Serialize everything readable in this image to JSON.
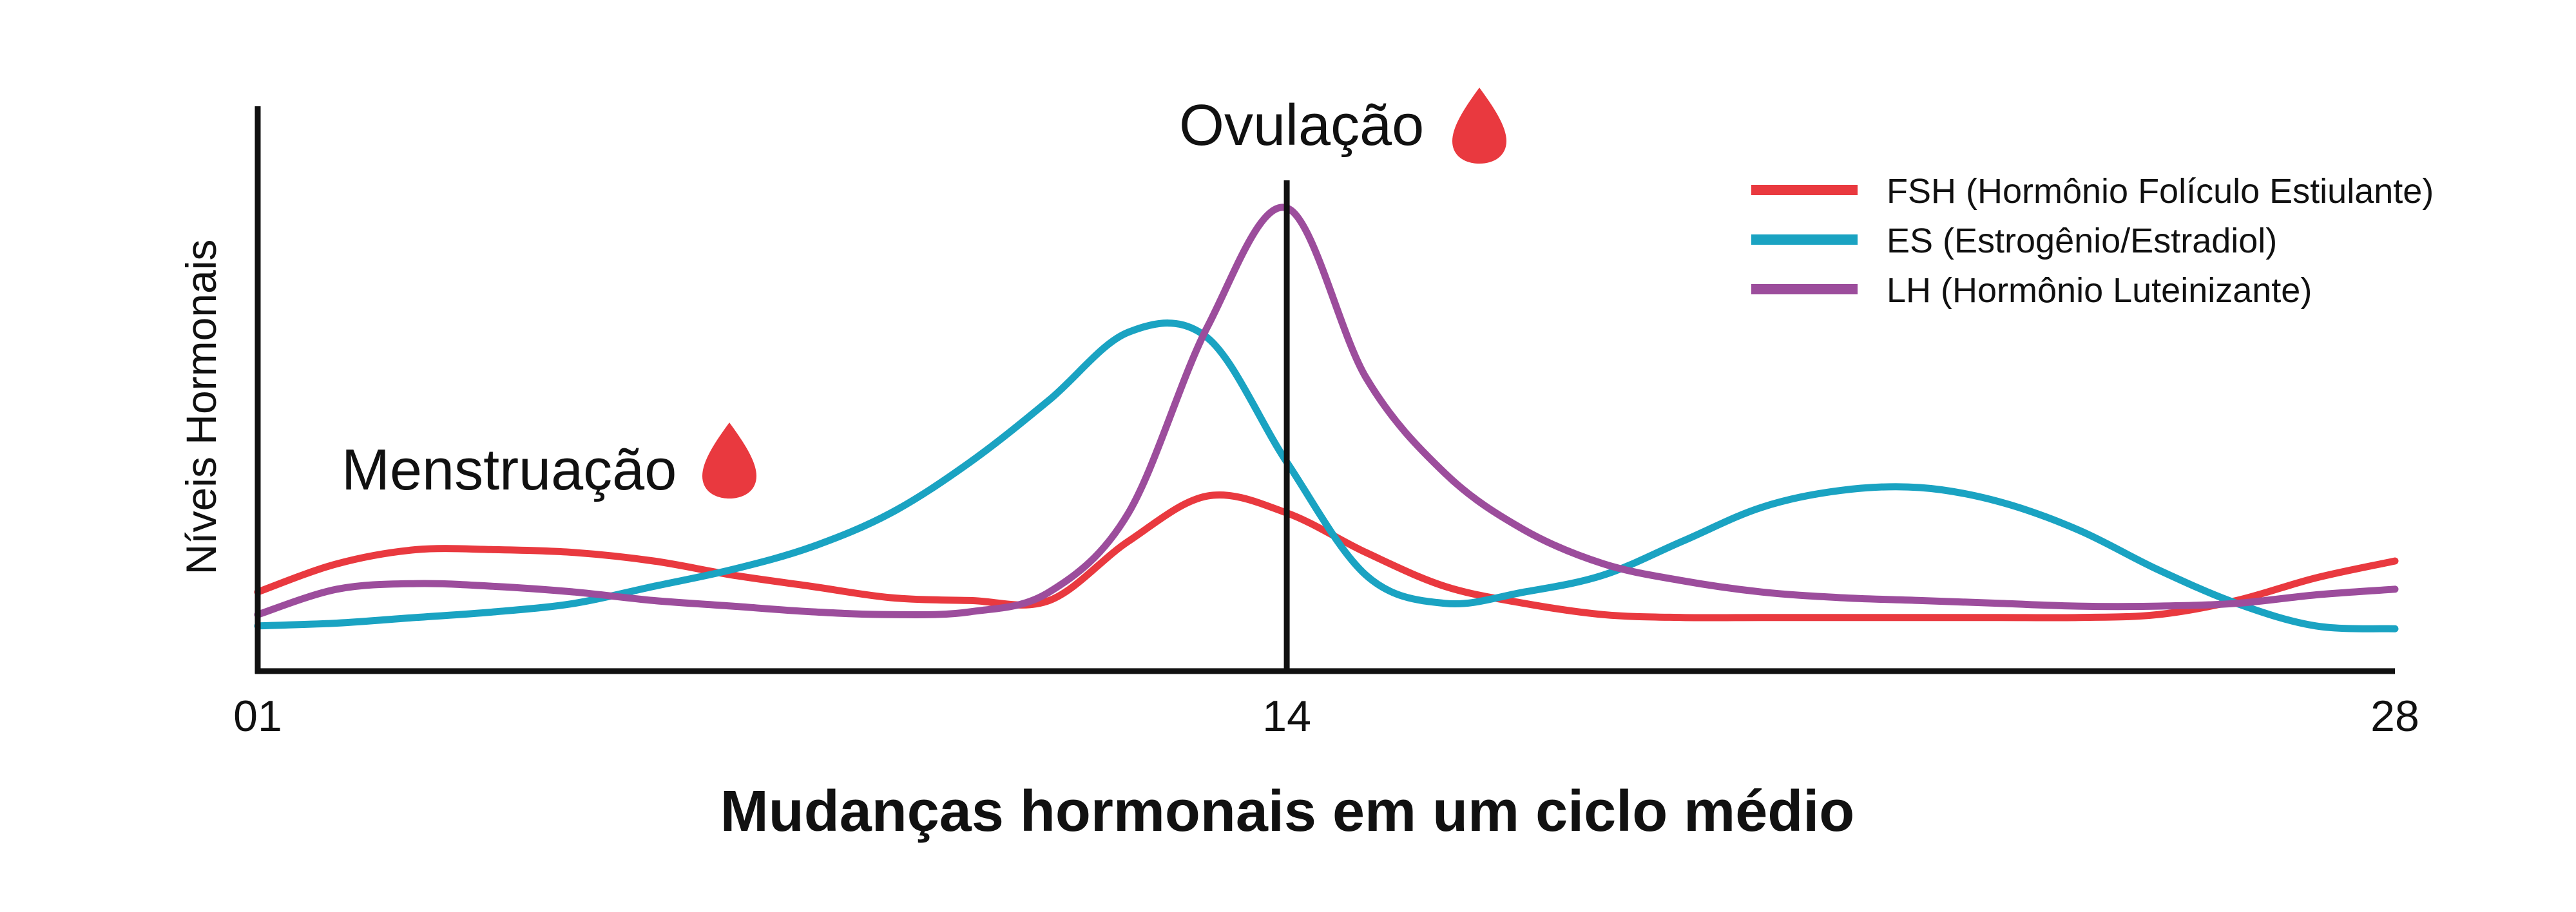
{
  "chart_data": {
    "type": "line",
    "title": "Mudanças hormonais em um ciclo médio",
    "xlabel": "",
    "ylabel": "Níveis Hormonais",
    "x_ticks": [
      "01",
      "14",
      "28"
    ],
    "xlim": [
      1,
      28
    ],
    "ylim": [
      0,
      100
    ],
    "grid": false,
    "legend_position": "top-right",
    "annotations": {
      "ovulation": {
        "label": "Ovulação",
        "x": 14,
        "icon": "blood-drop-icon",
        "color": "#e9393f"
      },
      "menstruation": {
        "label": "Menstruação",
        "icon": "blood-drop-icon",
        "color": "#e9393f"
      }
    },
    "series": [
      {
        "name": "FSH (Hormônio Folículo Estiulante)",
        "color": "#e9393f",
        "points": [
          [
            1,
            14
          ],
          [
            2,
            19
          ],
          [
            3,
            21.5
          ],
          [
            4,
            21.5
          ],
          [
            5,
            21
          ],
          [
            6,
            19.5
          ],
          [
            7,
            17
          ],
          [
            8,
            15
          ],
          [
            9,
            13
          ],
          [
            10,
            12.5
          ],
          [
            11,
            12.5
          ],
          [
            12,
            23
          ],
          [
            13,
            31
          ],
          [
            14,
            28
          ],
          [
            15,
            21
          ],
          [
            16,
            15
          ],
          [
            17,
            12
          ],
          [
            18,
            10
          ],
          [
            19,
            9.5
          ],
          [
            20,
            9.5
          ],
          [
            21,
            9.5
          ],
          [
            22,
            9.5
          ],
          [
            23,
            9.5
          ],
          [
            24,
            9.5
          ],
          [
            25,
            10
          ],
          [
            26,
            12.5
          ],
          [
            27,
            16.5
          ],
          [
            28,
            19.5
          ]
        ]
      },
      {
        "name": "ES (Estrogênio/Estradiol)",
        "color": "#1aa3c2",
        "points": [
          [
            1,
            8
          ],
          [
            2,
            8.5
          ],
          [
            3,
            9.5
          ],
          [
            4,
            10.5
          ],
          [
            5,
            12
          ],
          [
            6,
            15
          ],
          [
            7,
            18
          ],
          [
            8,
            22
          ],
          [
            9,
            28
          ],
          [
            10,
            37
          ],
          [
            11,
            48
          ],
          [
            12,
            60
          ],
          [
            13,
            59
          ],
          [
            14,
            37
          ],
          [
            15,
            17
          ],
          [
            16,
            12
          ],
          [
            17,
            14
          ],
          [
            18,
            17
          ],
          [
            19,
            23
          ],
          [
            20,
            29
          ],
          [
            21,
            32
          ],
          [
            22,
            32.5
          ],
          [
            23,
            30
          ],
          [
            24,
            25
          ],
          [
            25,
            18
          ],
          [
            26,
            12
          ],
          [
            27,
            8
          ],
          [
            28,
            7.5
          ]
        ]
      },
      {
        "name": "LH (Hormônio Luteinizante)",
        "color": "#9c4d9c",
        "points": [
          [
            1,
            10
          ],
          [
            2,
            14.5
          ],
          [
            3,
            15.5
          ],
          [
            4,
            15
          ],
          [
            5,
            14
          ],
          [
            6,
            12.5
          ],
          [
            7,
            11.5
          ],
          [
            8,
            10.5
          ],
          [
            9,
            10
          ],
          [
            10,
            10.5
          ],
          [
            11,
            14
          ],
          [
            12,
            28
          ],
          [
            13,
            61
          ],
          [
            14,
            82
          ],
          [
            15,
            52
          ],
          [
            16,
            35
          ],
          [
            17,
            25
          ],
          [
            18,
            19
          ],
          [
            19,
            16
          ],
          [
            20,
            14
          ],
          [
            21,
            13
          ],
          [
            22,
            12.5
          ],
          [
            23,
            12
          ],
          [
            24,
            11.5
          ],
          [
            25,
            11.5
          ],
          [
            26,
            12
          ],
          [
            27,
            13.5
          ],
          [
            28,
            14.5
          ]
        ]
      }
    ]
  }
}
